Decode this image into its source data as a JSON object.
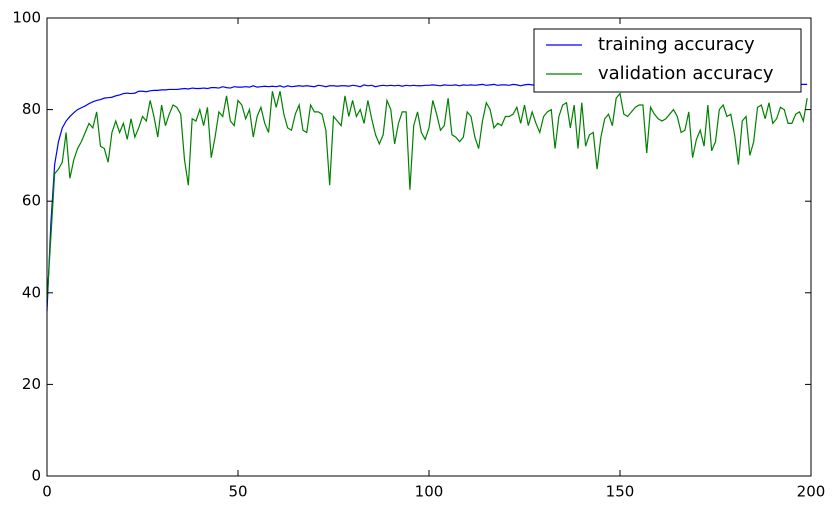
{
  "chart_data": {
    "type": "line",
    "x": [
      0,
      1,
      2,
      3,
      4,
      5,
      6,
      7,
      8,
      9,
      10,
      11,
      12,
      13,
      14,
      15,
      16,
      17,
      18,
      19,
      20,
      21,
      22,
      23,
      24,
      25,
      26,
      27,
      28,
      29,
      30,
      31,
      32,
      33,
      34,
      35,
      36,
      37,
      38,
      39,
      40,
      41,
      42,
      43,
      44,
      45,
      46,
      47,
      48,
      49,
      50,
      51,
      52,
      53,
      54,
      55,
      56,
      57,
      58,
      59,
      60,
      61,
      62,
      63,
      64,
      65,
      66,
      67,
      68,
      69,
      70,
      71,
      72,
      73,
      74,
      75,
      76,
      77,
      78,
      79,
      80,
      81,
      82,
      83,
      84,
      85,
      86,
      87,
      88,
      89,
      90,
      91,
      92,
      93,
      94,
      95,
      96,
      97,
      98,
      99,
      100,
      101,
      102,
      103,
      104,
      105,
      106,
      107,
      108,
      109,
      110,
      111,
      112,
      113,
      114,
      115,
      116,
      117,
      118,
      119,
      120,
      121,
      122,
      123,
      124,
      125,
      126,
      127,
      128,
      129,
      130,
      131,
      132,
      133,
      134,
      135,
      136,
      137,
      138,
      139,
      140,
      141,
      142,
      143,
      144,
      145,
      146,
      147,
      148,
      149,
      150,
      151,
      152,
      153,
      154,
      155,
      156,
      157,
      158,
      159,
      160,
      161,
      162,
      163,
      164,
      165,
      166,
      167,
      168,
      169,
      170,
      171,
      172,
      173,
      174,
      175,
      176,
      177,
      178,
      179,
      180,
      181,
      182,
      183,
      184,
      185,
      186,
      187,
      188,
      189,
      190,
      191,
      192,
      193,
      194,
      195,
      196,
      197,
      198,
      199
    ],
    "series": [
      {
        "name": "training accuracy",
        "color": "#0000ff",
        "values": [
          36,
          55,
          68,
          73,
          76,
          77.5,
          78.5,
          79.3,
          80,
          80.4,
          80.8,
          81.3,
          81.7,
          82,
          82.2,
          82.5,
          82.6,
          82.7,
          83,
          83.2,
          83.5,
          83.6,
          83.5,
          83.6,
          84,
          84,
          83.9,
          84.1,
          84.2,
          84.2,
          84.3,
          84.3,
          84.4,
          84.4,
          84.4,
          84.5,
          84.6,
          84.5,
          84.7,
          84.6,
          84.6,
          84.7,
          84.6,
          84.8,
          84.8,
          84.7,
          85,
          84.8,
          84.7,
          85,
          84.9,
          84.9,
          85,
          84.9,
          85.2,
          84.9,
          85,
          85.1,
          85,
          85.1,
          85,
          85.2,
          84.9,
          85.2,
          85,
          85.1,
          85.2,
          85.1,
          85.2,
          85.1,
          85,
          85.3,
          85.2,
          85,
          85.2,
          85.2,
          85.1,
          85.2,
          85.2,
          85.1,
          85.3,
          85.2,
          85,
          85.4,
          85.2,
          85.3,
          85,
          85.2,
          85.3,
          85.2,
          85.3,
          85.2,
          85.3,
          85.1,
          85.3,
          85.2,
          85.3,
          85.2,
          85.2,
          85.3,
          85.3,
          85.4,
          85.3,
          85.2,
          85.4,
          85.3,
          85.3,
          85.4,
          85.2,
          85.4,
          85.3,
          85.4,
          85.3,
          85.4,
          85.5,
          85.3,
          85.4,
          85.5,
          85.3,
          85.4,
          85.4,
          85.3,
          85.5,
          85.4,
          85.2,
          85.4,
          85.5,
          85.4,
          85.3,
          85.5,
          85.4,
          85.4,
          85.5,
          85.3,
          85.5,
          85.4,
          85.5,
          85.4,
          85.5,
          85.4,
          85.5,
          85.3,
          85.5,
          85.5,
          85.4,
          85.5,
          85.4,
          85.5,
          85.5,
          85.4,
          85.5,
          85.4,
          85.5,
          85.5,
          85.4,
          85.5,
          85.5,
          85.4,
          85.5,
          85.5,
          85.4,
          85.5,
          85.5,
          85.5,
          85.4,
          85.5,
          85.5,
          85.4,
          85.5,
          85.5,
          85.4,
          85.5,
          85.5,
          85.5,
          85.4,
          85.5,
          85.5,
          85.5,
          85.4,
          85.5,
          85.5,
          85.5,
          85.4,
          85.5,
          85.5,
          85.5,
          85.5,
          85.4,
          85.5,
          85.5,
          85.5,
          85.5,
          85.4,
          85.5,
          85.5,
          85.5,
          85.5,
          85.5,
          85.5,
          85.5
        ]
      },
      {
        "name": "validation accuracy",
        "color": "#008000",
        "values": [
          38,
          52,
          66,
          67,
          68.5,
          75,
          65,
          69,
          71.5,
          73,
          75,
          77,
          76,
          79.5,
          72,
          71.5,
          68.5,
          75,
          77.5,
          75,
          77,
          73.5,
          78,
          74,
          76,
          78.5,
          77.5,
          82,
          78.5,
          74,
          81,
          76.5,
          79,
          81,
          80.5,
          79,
          69,
          63.5,
          78,
          77.5,
          80,
          76.5,
          80.5,
          69.5,
          74,
          79.5,
          78.5,
          83,
          77.5,
          76.5,
          82,
          81,
          78,
          80,
          74,
          78.5,
          80.5,
          77,
          75,
          84,
          80.5,
          84,
          79,
          76,
          75.5,
          79,
          81,
          75.5,
          75,
          81,
          79.5,
          79.5,
          79,
          75.5,
          63.5,
          78.5,
          77.5,
          76.5,
          83,
          78.5,
          82,
          78.5,
          80,
          77,
          82,
          78,
          74.5,
          72.5,
          74.5,
          82,
          80,
          72.5,
          77,
          79.5,
          79.5,
          62.5,
          76.5,
          79.5,
          75,
          73.5,
          76,
          82,
          79,
          75.5,
          76.5,
          82.5,
          74.5,
          74,
          73,
          74,
          79.5,
          78.5,
          74,
          71.5,
          77.5,
          81.5,
          80,
          76,
          77,
          76.5,
          78.5,
          78.5,
          79,
          80.5,
          77,
          81,
          76.5,
          79.5,
          77,
          75,
          78.5,
          79.5,
          80,
          71.5,
          78.5,
          81,
          81.5,
          76,
          81,
          71.5,
          81.5,
          72,
          74.5,
          75,
          67,
          74,
          78,
          79,
          76.5,
          82.5,
          83.5,
          79,
          78.5,
          79.5,
          80.5,
          81,
          81,
          70.5,
          80.5,
          79,
          78,
          77.5,
          78,
          79,
          80,
          78.5,
          75,
          75.5,
          79.5,
          69.5,
          73.5,
          75.5,
          72,
          81,
          71,
          73,
          80,
          81,
          78.5,
          79,
          74.5,
          68,
          77.5,
          78.5,
          70,
          73,
          80.5,
          81,
          78,
          81.5,
          77,
          78,
          80.5,
          80,
          77,
          77,
          79,
          79.5,
          77.5,
          82.5
        ]
      }
    ],
    "xlim": [
      0,
      200
    ],
    "xticks": [
      0,
      50,
      100,
      150,
      200
    ],
    "ylim": [
      0,
      100
    ],
    "yticks": [
      0,
      20,
      40,
      60,
      80,
      100
    ],
    "grid": false,
    "legend": "upper right"
  }
}
